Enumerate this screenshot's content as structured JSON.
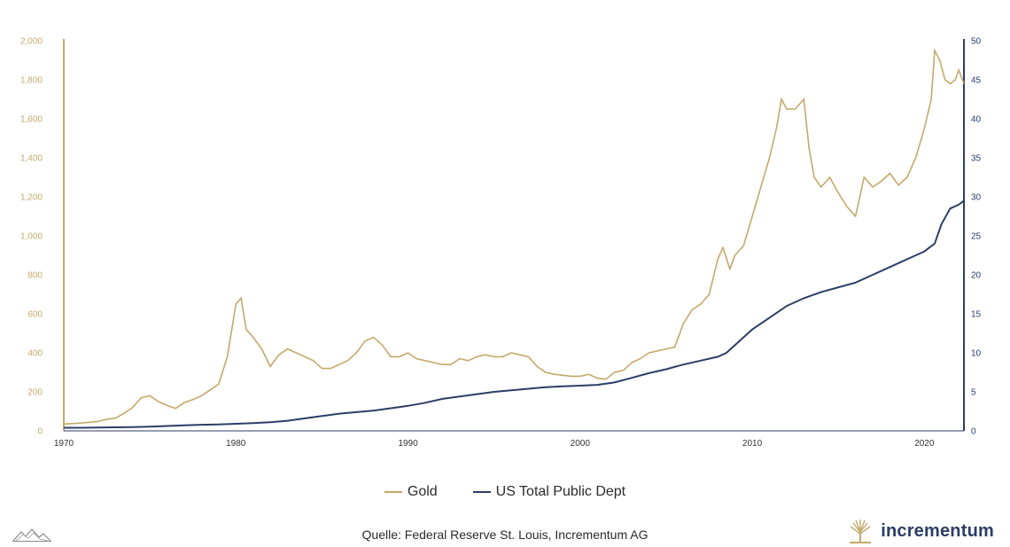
{
  "chart_data": {
    "type": "line",
    "x_ticks": [
      "1970",
      "1980",
      "1990",
      "2000",
      "2010",
      "2020"
    ],
    "xlim": [
      1970,
      2022.3
    ],
    "y_left_ticks": [
      "0",
      "200",
      "400",
      "600",
      "800",
      "1,000",
      "1,200",
      "1,400",
      "1,600",
      "1,800",
      "2,000"
    ],
    "y_left_lim": [
      0,
      2000
    ],
    "y_right_ticks": [
      "0",
      "5",
      "10",
      "15",
      "20",
      "25",
      "30",
      "35",
      "40",
      "45",
      "50"
    ],
    "y_right_lim": [
      0,
      50
    ],
    "grid": false,
    "legend_position": "bottom-center",
    "series": [
      {
        "name": "Gold",
        "axis": "left",
        "color": "#c4a96b",
        "x": [
          1970.0,
          1971.0,
          1972.0,
          1972.5,
          1973.0,
          1973.5,
          1974.0,
          1974.5,
          1975.0,
          1975.5,
          1976.0,
          1976.5,
          1977.0,
          1977.5,
          1978.0,
          1978.5,
          1979.0,
          1979.5,
          1980.0,
          1980.3,
          1980.6,
          1981.0,
          1981.5,
          1982.0,
          1982.5,
          1983.0,
          1983.5,
          1984.0,
          1984.5,
          1985.0,
          1985.5,
          1986.0,
          1986.5,
          1987.0,
          1987.5,
          1988.0,
          1988.5,
          1989.0,
          1989.5,
          1990.0,
          1990.5,
          1991.0,
          1991.5,
          1992.0,
          1992.5,
          1993.0,
          1993.5,
          1994.0,
          1994.5,
          1995.0,
          1995.5,
          1996.0,
          1996.5,
          1997.0,
          1997.5,
          1998.0,
          1998.5,
          1999.0,
          1999.5,
          2000.0,
          2000.5,
          2001.0,
          2001.5,
          2002.0,
          2002.5,
          2003.0,
          2003.5,
          2004.0,
          2004.5,
          2005.0,
          2005.5,
          2006.0,
          2006.5,
          2007.0,
          2007.5,
          2008.0,
          2008.3,
          2008.7,
          2009.0,
          2009.5,
          2010.0,
          2010.5,
          2011.0,
          2011.4,
          2011.7,
          2012.0,
          2012.5,
          2013.0,
          2013.3,
          2013.6,
          2014.0,
          2014.5,
          2015.0,
          2015.5,
          2016.0,
          2016.5,
          2017.0,
          2017.5,
          2018.0,
          2018.5,
          2019.0,
          2019.5,
          2020.0,
          2020.4,
          2020.6,
          2020.9,
          2021.2,
          2021.5,
          2021.8,
          2022.0,
          2022.3
        ],
        "values": [
          35,
          40,
          48,
          60,
          65,
          90,
          120,
          170,
          180,
          150,
          130,
          115,
          145,
          160,
          180,
          210,
          240,
          380,
          650,
          680,
          520,
          480,
          420,
          330,
          390,
          420,
          400,
          380,
          360,
          320,
          320,
          340,
          360,
          400,
          460,
          480,
          440,
          380,
          380,
          400,
          370,
          360,
          350,
          340,
          340,
          370,
          360,
          380,
          390,
          380,
          380,
          400,
          390,
          380,
          330,
          300,
          290,
          285,
          280,
          280,
          290,
          270,
          265,
          300,
          310,
          350,
          370,
          400,
          410,
          420,
          430,
          550,
          620,
          650,
          700,
          880,
          940,
          830,
          900,
          950,
          1100,
          1250,
          1400,
          1550,
          1700,
          1650,
          1650,
          1700,
          1450,
          1300,
          1250,
          1300,
          1220,
          1150,
          1100,
          1300,
          1250,
          1280,
          1320,
          1260,
          1300,
          1400,
          1550,
          1700,
          1950,
          1900,
          1800,
          1780,
          1800,
          1850,
          1780
        ]
      },
      {
        "name": "US Total Public Dept",
        "axis": "right",
        "color": "#2c3e66",
        "x": [
          1970,
          1971,
          1972,
          1973,
          1974,
          1975,
          1976,
          1977,
          1978,
          1979,
          1980,
          1981,
          1982,
          1983,
          1984,
          1985,
          1986,
          1987,
          1988,
          1989,
          1990,
          1991,
          1992,
          1993,
          1994,
          1995,
          1996,
          1997,
          1998,
          1999,
          2000,
          2001,
          2002,
          2003,
          2004,
          2005,
          2006,
          2007,
          2008,
          2008.5,
          2009,
          2010,
          2011,
          2012,
          2013,
          2014,
          2015,
          2016,
          2016.5,
          2017,
          2018,
          2019,
          2020,
          2020.3,
          2020.6,
          2021,
          2021.5,
          2022,
          2022.3
        ],
        "values": [
          0.4,
          0.4,
          0.43,
          0.46,
          0.48,
          0.53,
          0.62,
          0.7,
          0.78,
          0.83,
          0.91,
          1.0,
          1.1,
          1.3,
          1.6,
          1.9,
          2.2,
          2.4,
          2.6,
          2.9,
          3.2,
          3.6,
          4.1,
          4.4,
          4.7,
          5.0,
          5.2,
          5.4,
          5.6,
          5.7,
          5.8,
          5.9,
          6.2,
          6.8,
          7.4,
          7.9,
          8.5,
          9.0,
          9.5,
          10.0,
          11.0,
          13.0,
          14.5,
          16.0,
          17.0,
          17.8,
          18.4,
          19.0,
          19.5,
          20.0,
          21.0,
          22.0,
          23.0,
          23.5,
          24.0,
          26.5,
          28.5,
          29.0,
          29.5
        ]
      }
    ]
  },
  "legend": {
    "gold_label": "Gold",
    "debt_label": "US Total Public Dept"
  },
  "source": "Quelle: Federal Reserve St. Louis, Incrementum AG",
  "brand": {
    "name": "incrementum"
  }
}
